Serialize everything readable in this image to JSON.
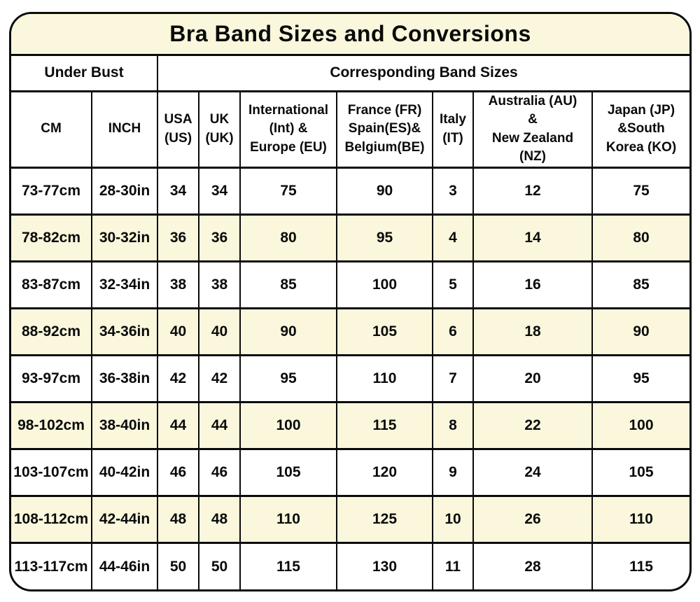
{
  "title": "Bra Band Sizes and Conversions",
  "colors": {
    "cream_background": "#FAF7DC",
    "row_highlight": "#FAF7DC",
    "border": "#0A0A0A",
    "page_background": "#FFFFFF",
    "text": "#0A0A0A"
  },
  "chart_data": {
    "type": "table",
    "title": "Bra Band Sizes and Conversions",
    "group_headers": [
      "Under Bust",
      "Corresponding Band Sizes"
    ],
    "group_header_spans": [
      2,
      7
    ],
    "columns": [
      "CM",
      "INCH",
      "USA (US)",
      "UK (UK)",
      "International (Int) & Europe (EU)",
      "France (FR) Spain(ES)& Belgium(BE)",
      "Italy (IT)",
      "Australia (AU) & New Zealand (NZ)",
      "Japan (JP) &South Korea (KO)"
    ],
    "column_display": [
      "CM",
      "INCH",
      "USA\n(US)",
      "UK\n(UK)",
      "International\n(Int) &\nEurope (EU)",
      "France (FR)\nSpain(ES)&\nBelgium(BE)",
      "Italy\n(IT)",
      "Australia (AU)\n&\nNew Zealand\n(NZ)",
      "Japan (JP)\n&South\nKorea (KO)"
    ],
    "column_ids": [
      "cm",
      "inch",
      "us",
      "uk",
      "eu",
      "fr-es-be",
      "it",
      "au-nz",
      "jp-ko"
    ],
    "rows": [
      [
        "73-77cm",
        "28-30in",
        "34",
        "34",
        "75",
        "90",
        "3",
        "12",
        "75"
      ],
      [
        "78-82cm",
        "30-32in",
        "36",
        "36",
        "80",
        "95",
        "4",
        "14",
        "80"
      ],
      [
        "83-87cm",
        "32-34in",
        "38",
        "38",
        "85",
        "100",
        "5",
        "16",
        "85"
      ],
      [
        "88-92cm",
        "34-36in",
        "40",
        "40",
        "90",
        "105",
        "6",
        "18",
        "90"
      ],
      [
        "93-97cm",
        "36-38in",
        "42",
        "42",
        "95",
        "110",
        "7",
        "20",
        "95"
      ],
      [
        "98-102cm",
        "38-40in",
        "44",
        "44",
        "100",
        "115",
        "8",
        "22",
        "100"
      ],
      [
        "103-107cm",
        "40-42in",
        "46",
        "46",
        "105",
        "120",
        "9",
        "24",
        "105"
      ],
      [
        "108-112cm",
        "42-44in",
        "48",
        "48",
        "110",
        "125",
        "10",
        "26",
        "110"
      ],
      [
        "113-117cm",
        "44-46in",
        "50",
        "50",
        "115",
        "130",
        "11",
        "28",
        "115"
      ]
    ],
    "highlighted_row_indices": [
      1,
      3,
      5,
      7
    ],
    "legend_position": "none",
    "grid": true
  }
}
